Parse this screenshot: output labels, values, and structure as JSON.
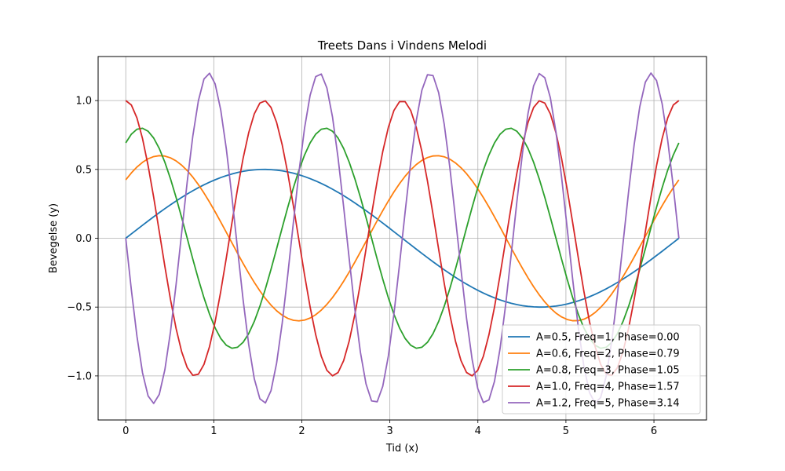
{
  "chart_data": {
    "type": "line",
    "title": "Treets Dans i Vindens Melodi",
    "xlabel": "Tid (x)",
    "ylabel": "Bevegelse (y)",
    "xlim": [
      -0.314,
      6.597
    ],
    "ylim": [
      -1.32,
      1.32
    ],
    "x_range": [
      0,
      6.283185
    ],
    "num_points": 100,
    "xticks": [
      0,
      1,
      2,
      3,
      4,
      5,
      6
    ],
    "xtick_labels": [
      "0",
      "1",
      "2",
      "3",
      "4",
      "5",
      "6"
    ],
    "yticks": [
      -1.0,
      -0.5,
      0.0,
      0.5,
      1.0
    ],
    "ytick_labels": [
      "−1.0",
      "−0.5",
      "0.0",
      "0.5",
      "1.0"
    ],
    "grid": true,
    "legend_position": "lower-right",
    "series": [
      {
        "name": "A=0.5, Freq=1, Phase=0.00",
        "amplitude": 0.5,
        "frequency": 1,
        "phase": 0.0,
        "color": "#1f77b4"
      },
      {
        "name": "A=0.6, Freq=2, Phase=0.79",
        "amplitude": 0.6,
        "frequency": 2,
        "phase": 0.785398,
        "color": "#ff7f0e"
      },
      {
        "name": "A=0.8, Freq=3, Phase=1.05",
        "amplitude": 0.8,
        "frequency": 3,
        "phase": 1.047198,
        "color": "#2ca02c"
      },
      {
        "name": "A=1.0, Freq=4, Phase=1.57",
        "amplitude": 1.0,
        "frequency": 4,
        "phase": 1.570796,
        "color": "#d62728"
      },
      {
        "name": "A=1.2, Freq=5, Phase=3.14",
        "amplitude": 1.2,
        "frequency": 5,
        "phase": 3.141593,
        "color": "#9467bd"
      }
    ]
  }
}
